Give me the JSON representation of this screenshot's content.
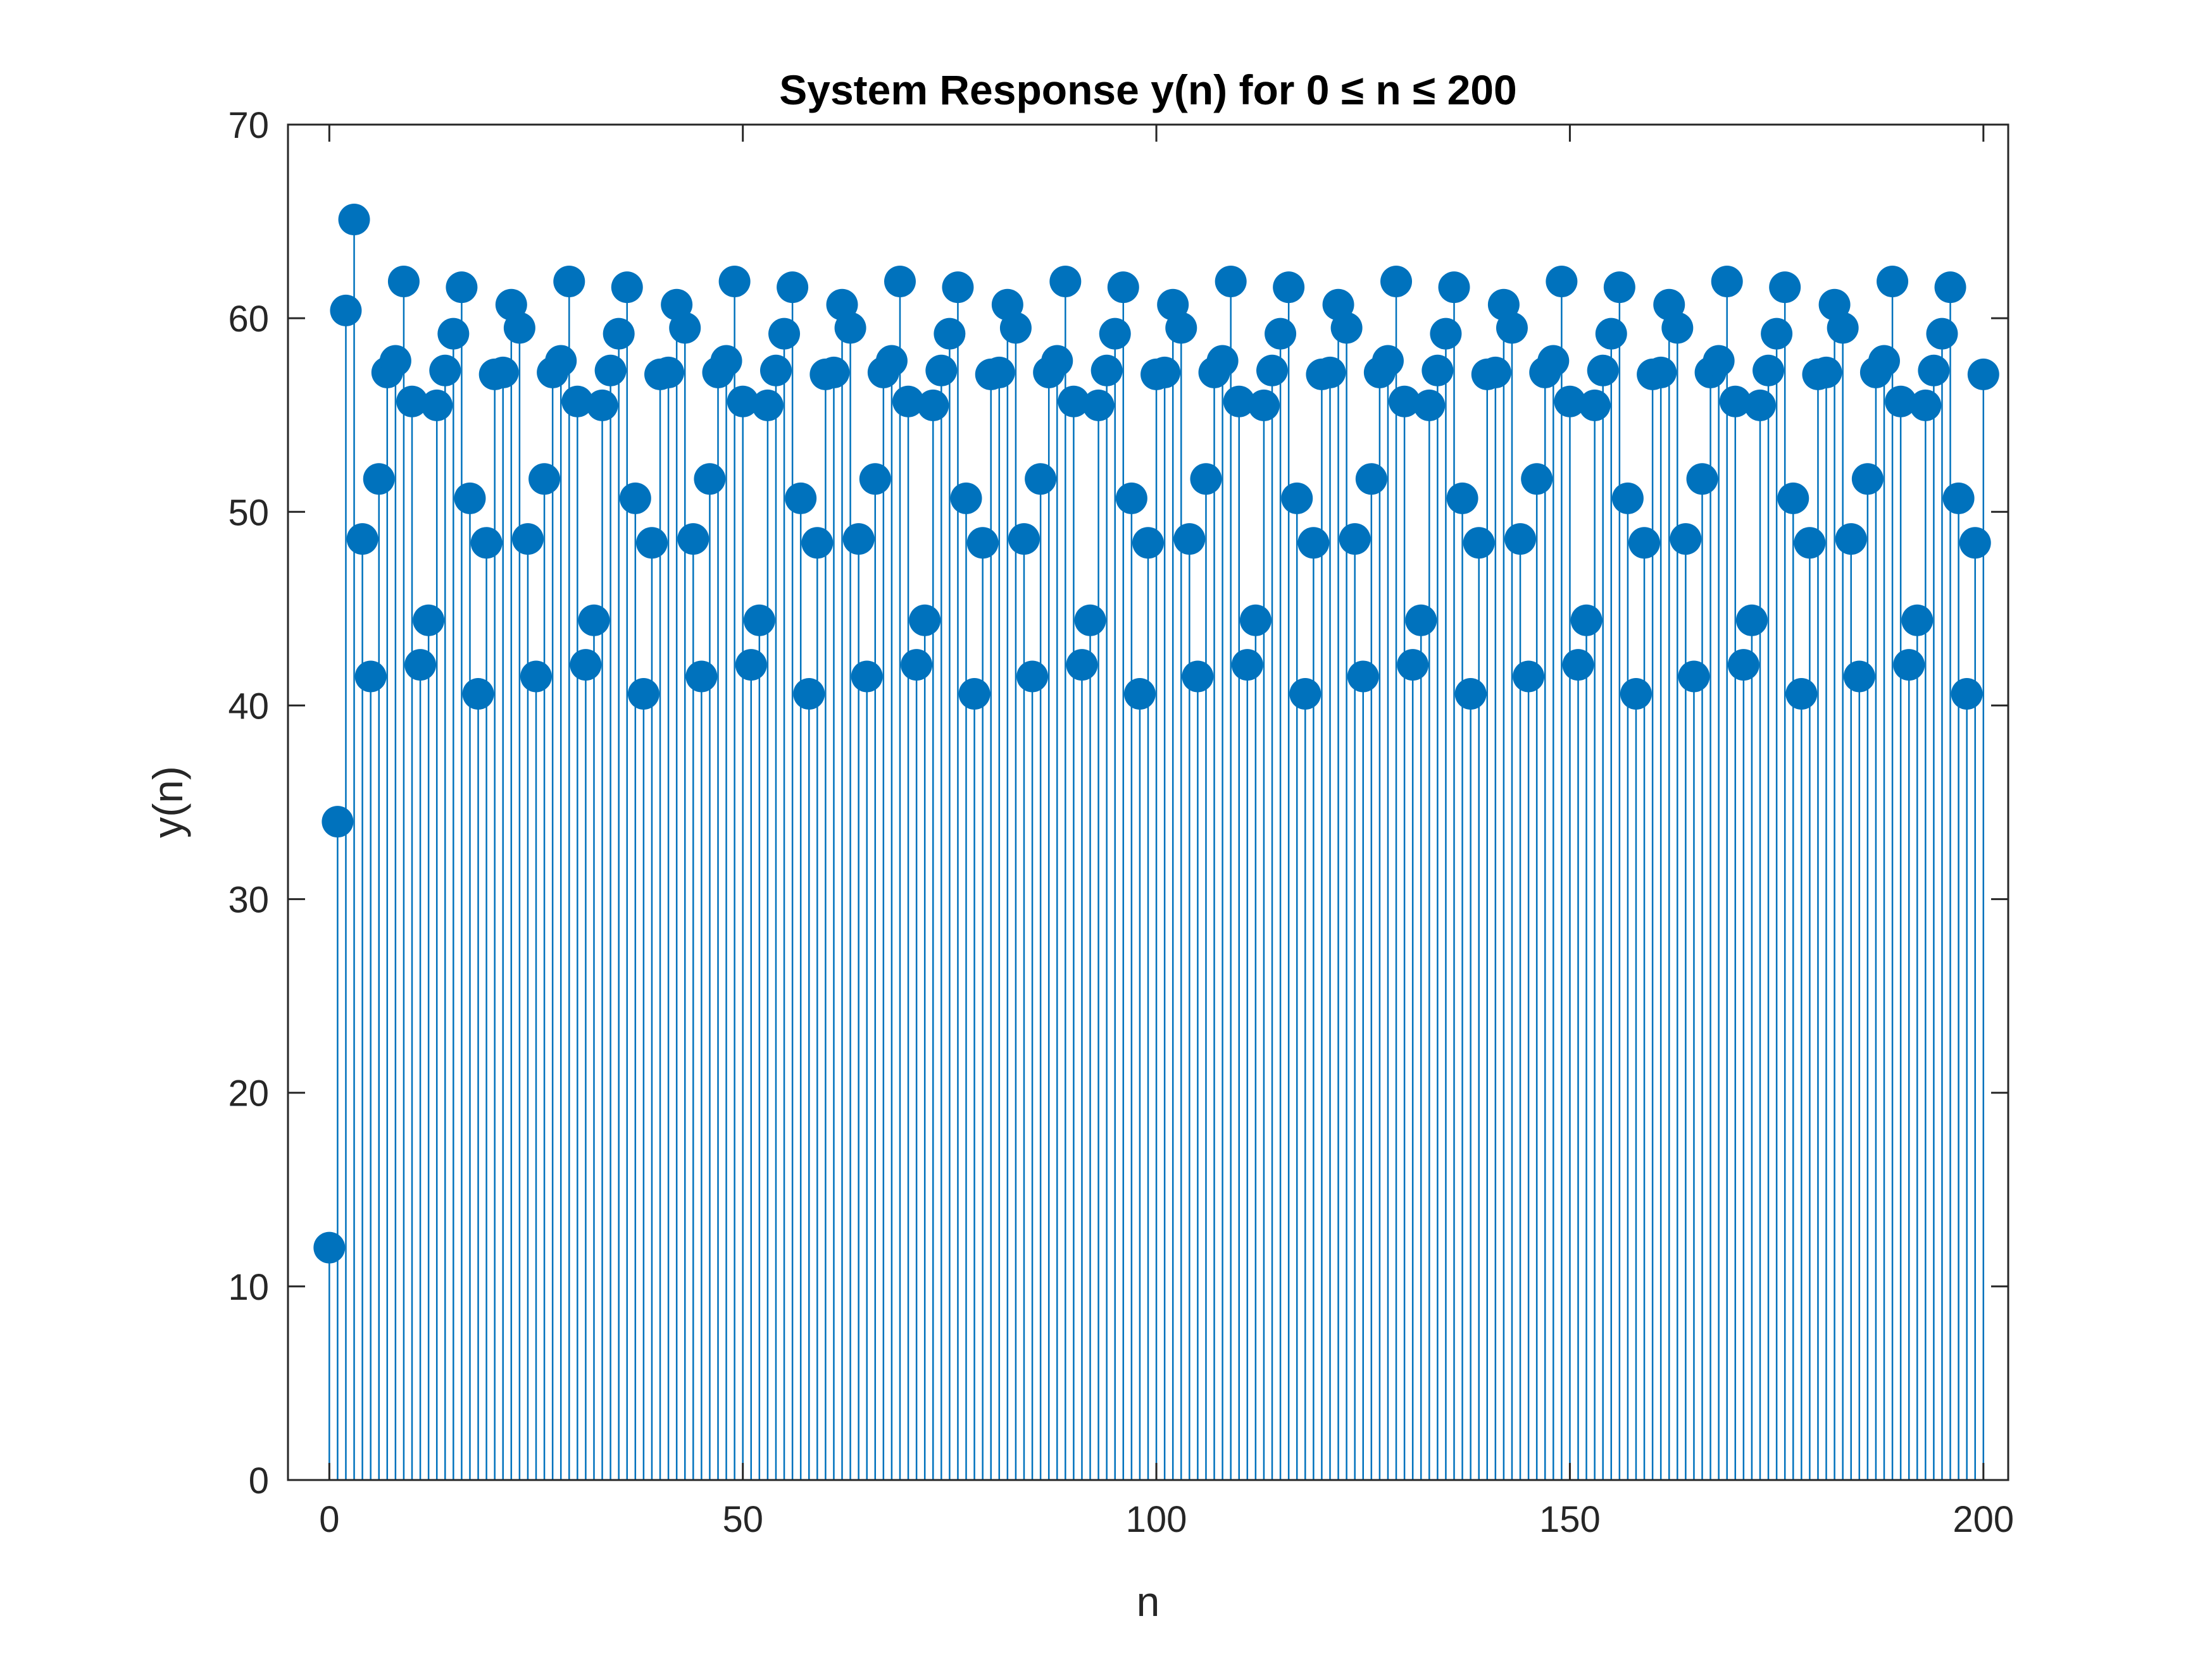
{
  "chart_data": {
    "type": "stem",
    "title": "System Response y(n) for 0 ≤ n ≤ 200",
    "xlabel": "n",
    "ylabel": "y(n)",
    "xlim": [
      -5,
      203
    ],
    "ylim": [
      0,
      70
    ],
    "xticks": [
      0,
      50,
      100,
      150,
      200
    ],
    "yticks": [
      0,
      10,
      20,
      30,
      40,
      50,
      60,
      70
    ],
    "grid": false,
    "color": "#0072BD",
    "initial": {
      "x": [
        0,
        1,
        2,
        3
      ],
      "y": [
        12.0,
        34.0,
        60.4,
        65.1
      ]
    },
    "periodic": {
      "start": 4,
      "end": 200,
      "period": 20,
      "values": [
        48.6,
        41.5,
        51.7,
        57.2,
        57.8,
        61.9,
        55.7,
        42.1,
        44.4,
        55.5,
        57.3,
        59.2,
        61.6,
        50.7,
        40.6,
        48.4,
        57.1,
        57.2,
        60.7,
        59.5
      ]
    }
  }
}
